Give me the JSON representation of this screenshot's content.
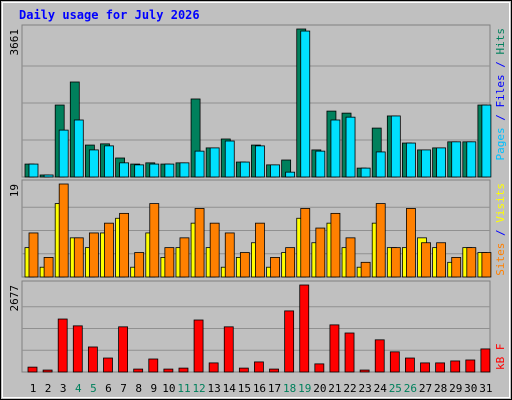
{
  "title": "Daily usage for July 2026",
  "chart_data": [
    {
      "type": "bar",
      "ylim": [
        0,
        3661
      ],
      "yticks": [
        3661
      ],
      "right_label": [
        {
          "text": "Pages",
          "color": "#00c0ff"
        },
        {
          "text": " / ",
          "color": "#0000ff"
        },
        {
          "text": "Files",
          "color": "#0000ff"
        },
        {
          "text": " / ",
          "color": "#0000ff"
        },
        {
          "text": "Hits",
          "color": "#00805c"
        }
      ],
      "series": [
        {
          "color": "#00805c",
          "values": [
            320,
            50,
            1780,
            2350,
            790,
            820,
            470,
            320,
            350,
            320,
            350,
            1930,
            720,
            940,
            370,
            790,
            300,
            420,
            3661,
            670,
            1630,
            1580,
            220,
            1210,
            1510,
            840,
            670,
            720,
            870,
            870,
            1780
          ]
        },
        {
          "color": "#00e0ff",
          "values": [
            320,
            50,
            1160,
            1410,
            670,
            770,
            350,
            300,
            320,
            320,
            350,
            640,
            720,
            890,
            370,
            770,
            300,
            120,
            3610,
            640,
            1410,
            1480,
            220,
            620,
            1510,
            840,
            670,
            720,
            870,
            870,
            1780
          ]
        }
      ]
    },
    {
      "type": "bar",
      "ylim": [
        0,
        19
      ],
      "yticks": [
        19
      ],
      "right_label": [
        {
          "text": "Sites",
          "color": "#ff8000"
        },
        {
          "text": " / ",
          "color": "#0000ff"
        },
        {
          "text": "Visits",
          "color": "#ffff00"
        }
      ],
      "series": [
        {
          "color": "#ffff00",
          "values": [
            6,
            2,
            15,
            8,
            6,
            9,
            12,
            2,
            9,
            4,
            6,
            11,
            6,
            2,
            4,
            7,
            2,
            5,
            12,
            7,
            11,
            6,
            2,
            11,
            6,
            6,
            8,
            6,
            3,
            6,
            5
          ]
        },
        {
          "color": "#ff8000",
          "values": [
            9,
            4,
            19,
            8,
            9,
            11,
            13,
            5,
            15,
            6,
            8,
            14,
            11,
            9,
            5,
            11,
            4,
            6,
            14,
            10,
            13,
            8,
            3,
            15,
            6,
            14,
            7,
            7,
            4,
            6,
            5
          ]
        }
      ]
    },
    {
      "type": "bar",
      "ylim": [
        0,
        2677
      ],
      "yticks": [
        2677
      ],
      "right_label": [
        {
          "text": "kB F",
          "color": "#ff0000"
        }
      ],
      "series": [
        {
          "color": "#ff0000",
          "values": [
            150,
            60,
            1630,
            1420,
            770,
            430,
            1390,
            90,
            400,
            90,
            120,
            1600,
            280,
            1390,
            120,
            310,
            90,
            1880,
            2677,
            250,
            1450,
            1200,
            60,
            990,
            620,
            430,
            280,
            280,
            340,
            370,
            710
          ]
        }
      ],
      "categories": [
        "1",
        "2",
        "3",
        "4",
        "5",
        "6",
        "7",
        "8",
        "9",
        "10",
        "11",
        "12",
        "13",
        "14",
        "15",
        "16",
        "17",
        "18",
        "19",
        "20",
        "21",
        "22",
        "23",
        "24",
        "25",
        "26",
        "27",
        "28",
        "29",
        "30",
        "31"
      ],
      "category_colors": [
        "#000000",
        "#000000",
        "#000000",
        "#00805c",
        "#00805c",
        "#000000",
        "#000000",
        "#000000",
        "#000000",
        "#000000",
        "#00805c",
        "#00805c",
        "#000000",
        "#000000",
        "#000000",
        "#000000",
        "#000000",
        "#00805c",
        "#00805c",
        "#000000",
        "#000000",
        "#000000",
        "#000000",
        "#000000",
        "#00805c",
        "#00805c",
        "#000000",
        "#000000",
        "#000000",
        "#000000",
        "#000000"
      ]
    }
  ]
}
